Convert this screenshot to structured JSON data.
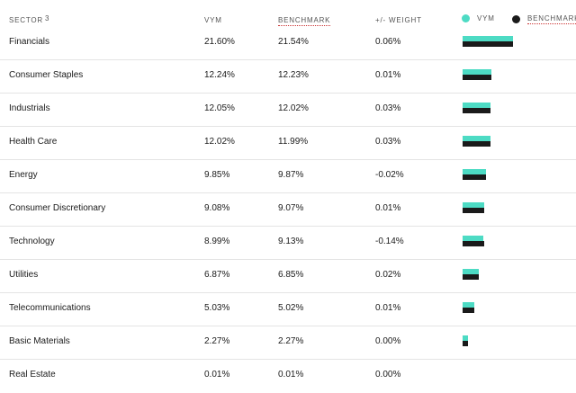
{
  "colors": {
    "vym": "#4ddbc4",
    "benchmark": "#1a1a1a"
  },
  "header": {
    "sector": "SECTOR",
    "footnote": "3",
    "vym": "VYM",
    "benchmark": "BENCHMARK",
    "weight": "+/- WEIGHT"
  },
  "legend": {
    "vym": "VYM",
    "benchmark": "BENCHMARK"
  },
  "rows": [
    {
      "sector": "Financials",
      "vym": "21.60%",
      "benchmark": "21.54%",
      "weight": "0.06%",
      "vym_value": 21.6,
      "benchmark_value": 21.54
    },
    {
      "sector": "Consumer Staples",
      "vym": "12.24%",
      "benchmark": "12.23%",
      "weight": "0.01%",
      "vym_value": 12.24,
      "benchmark_value": 12.23
    },
    {
      "sector": "Industrials",
      "vym": "12.05%",
      "benchmark": "12.02%",
      "weight": "0.03%",
      "vym_value": 12.05,
      "benchmark_value": 12.02
    },
    {
      "sector": "Health Care",
      "vym": "12.02%",
      "benchmark": "11.99%",
      "weight": "0.03%",
      "vym_value": 12.02,
      "benchmark_value": 11.99
    },
    {
      "sector": "Energy",
      "vym": "9.85%",
      "benchmark": "9.87%",
      "weight": "-0.02%",
      "vym_value": 9.85,
      "benchmark_value": 9.87
    },
    {
      "sector": "Consumer Discretionary",
      "vym": "9.08%",
      "benchmark": "9.07%",
      "weight": "0.01%",
      "vym_value": 9.08,
      "benchmark_value": 9.07
    },
    {
      "sector": "Technology",
      "vym": "8.99%",
      "benchmark": "9.13%",
      "weight": "-0.14%",
      "vym_value": 8.99,
      "benchmark_value": 9.13
    },
    {
      "sector": "Utilities",
      "vym": "6.87%",
      "benchmark": "6.85%",
      "weight": "0.02%",
      "vym_value": 6.87,
      "benchmark_value": 6.85
    },
    {
      "sector": "Telecommunications",
      "vym": "5.03%",
      "benchmark": "5.02%",
      "weight": "0.01%",
      "vym_value": 5.03,
      "benchmark_value": 5.02
    },
    {
      "sector": "Basic Materials",
      "vym": "2.27%",
      "benchmark": "2.27%",
      "weight": "0.00%",
      "vym_value": 2.27,
      "benchmark_value": 2.27
    },
    {
      "sector": "Real Estate",
      "vym": "0.01%",
      "benchmark": "0.01%",
      "weight": "0.00%",
      "vym_value": 0.01,
      "benchmark_value": 0.01
    }
  ]
}
